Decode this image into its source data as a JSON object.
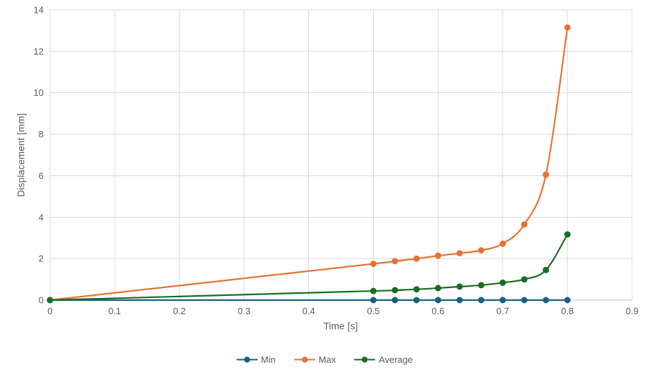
{
  "chart_data": {
    "type": "line",
    "title": "",
    "xlabel": "Time [s]",
    "ylabel": "Displacement [mm]",
    "xlim": [
      0,
      0.9
    ],
    "ylim": [
      0,
      14
    ],
    "x_ticks": [
      "0",
      "0.1",
      "0.2",
      "0.3",
      "0.4",
      "0.5",
      "0.6",
      "0.7",
      "0.8",
      "0.9"
    ],
    "x_tick_values": [
      0,
      0.1,
      0.2,
      0.3,
      0.4,
      0.5,
      0.6,
      0.7,
      0.8,
      0.9
    ],
    "y_ticks": [
      "0",
      "2",
      "4",
      "6",
      "8",
      "10",
      "12",
      "14"
    ],
    "y_tick_values": [
      0,
      2,
      4,
      6,
      8,
      10,
      12,
      14
    ],
    "grid": "on",
    "legend_position": "bottom-center",
    "line_style": "smooth-with-circle-markers",
    "x": [
      0,
      0.5,
      0.5333,
      0.5667,
      0.6,
      0.6333,
      0.6667,
      0.7,
      0.7333,
      0.7667,
      0.8
    ],
    "series": [
      {
        "name": "Min",
        "color": "#156082",
        "values": [
          0,
          0,
          0,
          0,
          0,
          0,
          0,
          0,
          0,
          0,
          0
        ]
      },
      {
        "name": "Max",
        "color": "#E97132",
        "values": [
          0,
          1.75,
          1.88,
          2.0,
          2.14,
          2.26,
          2.4,
          2.72,
          3.65,
          6.05,
          13.15
        ]
      },
      {
        "name": "Average",
        "color": "#196B24",
        "values": [
          0,
          0.44,
          0.48,
          0.52,
          0.58,
          0.65,
          0.72,
          0.84,
          1.0,
          1.45,
          3.17
        ]
      }
    ]
  },
  "colors": {
    "gridline": "#D9D9D9",
    "axis_line": "#BFBFBF",
    "tick_text": "#595959",
    "background": "#FFFFFF"
  }
}
